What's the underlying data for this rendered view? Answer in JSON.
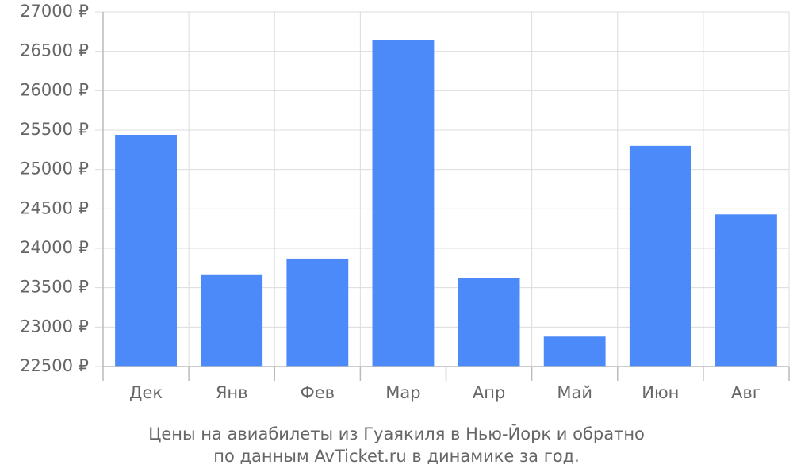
{
  "chart_data": {
    "type": "bar",
    "title_lines": [
      "Цены на авиабилеты из Гуаякиля в Нью-Йорк и обратно",
      "по данным AvTicket.ru в динамике за год."
    ],
    "categories": [
      "Дек",
      "Янв",
      "Фев",
      "Мар",
      "Апр",
      "Май",
      "Июн",
      "Авг"
    ],
    "values": [
      25440,
      23660,
      23870,
      26640,
      23620,
      22880,
      25300,
      24430
    ],
    "color": "#4d8af9",
    "ylim": [
      22500,
      27000
    ],
    "yticks": [
      {
        "value": 22500,
        "label": "22500 ₽"
      },
      {
        "value": 23000,
        "label": "23000 ₽"
      },
      {
        "value": 23500,
        "label": "23500 ₽"
      },
      {
        "value": 24000,
        "label": "24000 ₽"
      },
      {
        "value": 24500,
        "label": "24500 ₽"
      },
      {
        "value": 25000,
        "label": "25000 ₽"
      },
      {
        "value": 25500,
        "label": "25500 ₽"
      },
      {
        "value": 26000,
        "label": "26000 ₽"
      },
      {
        "value": 26500,
        "label": "26500 ₽"
      },
      {
        "value": 27000,
        "label": "27000 ₽"
      }
    ],
    "grid": true
  }
}
